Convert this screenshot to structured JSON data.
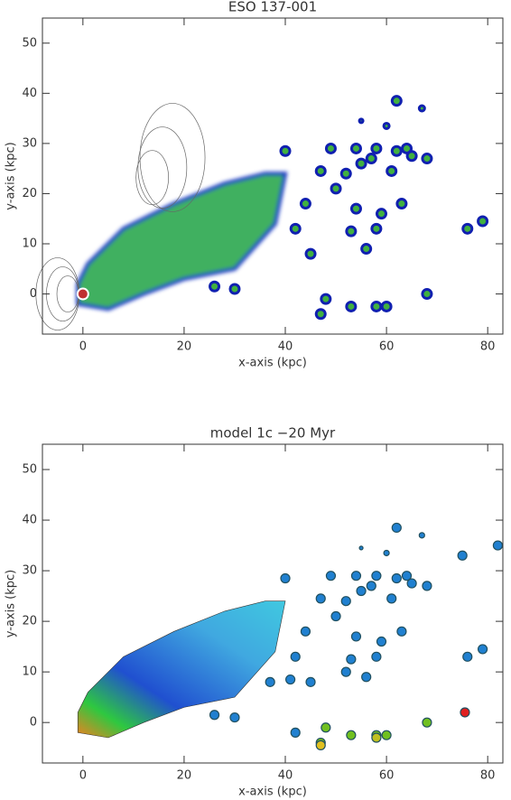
{
  "chart_data": [
    {
      "type": "image",
      "title": "ESO 137-001",
      "xlabel": "x-axis (kpc)",
      "ylabel": "y-axis (kpc)",
      "xlim": [
        -8,
        83
      ],
      "ylim": [
        -8,
        55
      ],
      "xticks": [
        0,
        20,
        40,
        60,
        80
      ],
      "yticks": [
        0,
        10,
        20,
        30,
        40,
        50
      ]
    },
    {
      "type": "image",
      "title": "model 1c   −20 Myr",
      "xlabel": "x-axis (kpc)",
      "ylabel": "y-axis (kpc)",
      "xlim": [
        -8,
        83
      ],
      "ylim": [
        -8,
        55
      ],
      "xticks": [
        0,
        20,
        40,
        60,
        80
      ],
      "yticks": [
        0,
        10,
        20,
        30,
        40,
        50
      ]
    }
  ]
}
